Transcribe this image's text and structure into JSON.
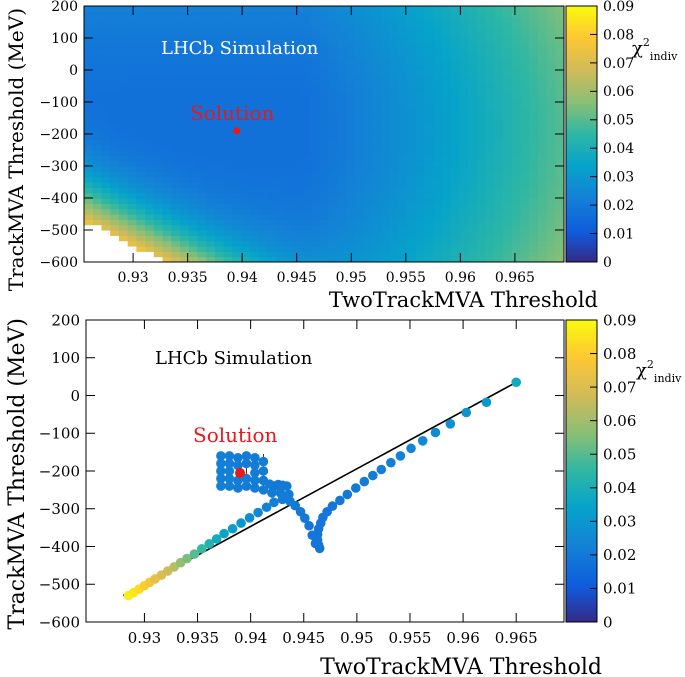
{
  "chart_data": [
    {
      "type": "heatmap",
      "title": "",
      "label": "LHCb Simulation",
      "xlabel": "TwoTrackMVA Threshold",
      "ylabel": "TrackMVA Threshold (MeV)",
      "xlim": [
        0.9255,
        0.9695
      ],
      "ylim": [
        -600,
        200
      ],
      "x_ticks": [
        0.93,
        0.935,
        0.94,
        0.945,
        0.95,
        0.955,
        0.96,
        0.965
      ],
      "x_tick_labels": [
        "0.93",
        "0.935",
        "0.94",
        "0.945",
        "0.95",
        "0.955",
        "0.96",
        "0.965"
      ],
      "y_ticks": [
        -600,
        -500,
        -400,
        -300,
        -200,
        -100,
        0,
        100,
        200
      ],
      "y_tick_labels": [
        "−600",
        "−500",
        "−400",
        "−300",
        "−200",
        "−100",
        "0",
        "100",
        "200"
      ],
      "colorbar": {
        "label_main": "χ",
        "label_sup": "2",
        "label_sub": "indiv",
        "range": [
          0,
          0.09
        ],
        "ticks": [
          0,
          0.01,
          0.02,
          0.03,
          0.04,
          0.05,
          0.06,
          0.07,
          0.08,
          0.09
        ],
        "tick_labels": [
          "0",
          "0.01",
          "0.02",
          "0.03",
          "0.04",
          "0.05",
          "0.06",
          "0.07",
          "0.08",
          "0.09"
        ]
      },
      "annotation": {
        "text": "Solution",
        "x": 0.9395,
        "y": -190,
        "color": "#e8191a"
      },
      "surface": {
        "description": "chi2_indiv over grid, minimum valley around TwoTrack~0.945 and TrackMVA~-250..0",
        "grid_x_step": 0.0008,
        "grid_y_step": 16.7,
        "min_value": 0.017,
        "max_value": 0.09,
        "empty_region": "lower-left corner (x<0.933, y<-470)"
      }
    },
    {
      "type": "scatter",
      "title": "",
      "label": "LHCb Simulation",
      "xlabel": "TwoTrackMVA Threshold",
      "ylabel": "TrackMVA Threshold (MeV)",
      "xlim": [
        0.9245,
        0.9695
      ],
      "ylim": [
        -600,
        200
      ],
      "x_ticks": [
        0.93,
        0.935,
        0.94,
        0.945,
        0.95,
        0.955,
        0.96,
        0.965
      ],
      "x_tick_labels": [
        "0.93",
        "0.935",
        "0.94",
        "0.945",
        "0.95",
        "0.955",
        "0.96",
        "0.965"
      ],
      "y_ticks": [
        -600,
        -500,
        -400,
        -300,
        -200,
        -100,
        0,
        100,
        200
      ],
      "y_tick_labels": [
        "−600",
        "−500",
        "−400",
        "−300",
        "−200",
        "−100",
        "0",
        "100",
        "200"
      ],
      "colorbar": {
        "label_main": "χ",
        "label_sup": "2",
        "label_sub": "indiv",
        "range": [
          0,
          0.09
        ],
        "ticks": [
          0,
          0.01,
          0.02,
          0.03,
          0.04,
          0.05,
          0.06,
          0.07,
          0.08,
          0.09
        ],
        "tick_labels": [
          "0",
          "0.01",
          "0.02",
          "0.03",
          "0.04",
          "0.05",
          "0.06",
          "0.07",
          "0.08",
          "0.09"
        ]
      },
      "annotation": {
        "text": "Solution",
        "x": 0.939,
        "y": -205,
        "color": "#e8191a"
      },
      "line": {
        "x": [
          0.928,
          0.965
        ],
        "y": [
          -530,
          35
        ]
      },
      "points": {
        "upper_line": [
          [
            0.965,
            35,
            0.037
          ],
          [
            0.9622,
            -18,
            0.03
          ],
          [
            0.9603,
            -45,
            0.029
          ],
          [
            0.9588,
            -75,
            0.027
          ],
          [
            0.9574,
            -98,
            0.026
          ],
          [
            0.9562,
            -120,
            0.025
          ],
          [
            0.9551,
            -140,
            0.024
          ],
          [
            0.9541,
            -160,
            0.023
          ],
          [
            0.9532,
            -178,
            0.022
          ],
          [
            0.9523,
            -196,
            0.022
          ],
          [
            0.9515,
            -212,
            0.021
          ],
          [
            0.9507,
            -228,
            0.021
          ],
          [
            0.9499,
            -245,
            0.02
          ],
          [
            0.9491,
            -262,
            0.02
          ],
          [
            0.9484,
            -278,
            0.02
          ],
          [
            0.9477,
            -293,
            0.019
          ],
          [
            0.9472,
            -308,
            0.019
          ],
          [
            0.9468,
            -323,
            0.019
          ],
          [
            0.9466,
            -338,
            0.019
          ],
          [
            0.9464,
            -353,
            0.019
          ],
          [
            0.9463,
            -368,
            0.019
          ],
          [
            0.9463,
            -383,
            0.019
          ],
          [
            0.9464,
            -396,
            0.019
          ],
          [
            0.9465,
            -405,
            0.019
          ]
        ],
        "lower_line": [
          [
            0.9285,
            -530,
            0.087
          ],
          [
            0.929,
            -522,
            0.086
          ],
          [
            0.9295,
            -513,
            0.083
          ],
          [
            0.93,
            -504,
            0.08
          ],
          [
            0.9305,
            -495,
            0.077
          ],
          [
            0.931,
            -486,
            0.073
          ],
          [
            0.9316,
            -476,
            0.07
          ],
          [
            0.9322,
            -465,
            0.067
          ],
          [
            0.9328,
            -454,
            0.063
          ],
          [
            0.9334,
            -443,
            0.058
          ],
          [
            0.934,
            -432,
            0.054
          ],
          [
            0.9347,
            -420,
            0.05
          ],
          [
            0.9354,
            -406,
            0.046
          ],
          [
            0.9361,
            -393,
            0.042
          ],
          [
            0.9368,
            -380,
            0.038
          ],
          [
            0.9375,
            -366,
            0.035
          ],
          [
            0.9383,
            -353,
            0.032
          ],
          [
            0.9391,
            -338,
            0.03
          ],
          [
            0.9399,
            -324,
            0.027
          ],
          [
            0.9407,
            -310,
            0.025
          ],
          [
            0.9415,
            -296,
            0.023
          ],
          [
            0.9422,
            -283,
            0.022
          ],
          [
            0.943,
            -275,
            0.021
          ],
          [
            0.9437,
            -280,
            0.021
          ],
          [
            0.9442,
            -292,
            0.02
          ],
          [
            0.9447,
            -308,
            0.02
          ],
          [
            0.9451,
            -325,
            0.02
          ],
          [
            0.9455,
            -345,
            0.019
          ],
          [
            0.9458,
            -370,
            0.019
          ],
          [
            0.9461,
            -392,
            0.019
          ]
        ],
        "cluster": [
          [
            0.9372,
            -160,
            0.022
          ],
          [
            0.9372,
            -180,
            0.022
          ],
          [
            0.9372,
            -200,
            0.022
          ],
          [
            0.9372,
            -220,
            0.022
          ],
          [
            0.9372,
            -240,
            0.022
          ],
          [
            0.938,
            -160,
            0.022
          ],
          [
            0.938,
            -180,
            0.022
          ],
          [
            0.938,
            -200,
            0.022
          ],
          [
            0.938,
            -220,
            0.022
          ],
          [
            0.938,
            -240,
            0.022
          ],
          [
            0.9388,
            -165,
            0.021
          ],
          [
            0.9388,
            -185,
            0.021
          ],
          [
            0.9388,
            -225,
            0.021
          ],
          [
            0.9388,
            -245,
            0.021
          ],
          [
            0.9396,
            -160,
            0.021
          ],
          [
            0.9396,
            -180,
            0.021
          ],
          [
            0.9396,
            -220,
            0.021
          ],
          [
            0.9396,
            -240,
            0.021
          ],
          [
            0.9404,
            -165,
            0.021
          ],
          [
            0.9404,
            -185,
            0.021
          ],
          [
            0.9404,
            -205,
            0.021
          ],
          [
            0.9404,
            -225,
            0.021
          ],
          [
            0.9404,
            -245,
            0.021
          ],
          [
            0.9412,
            -175,
            0.021
          ],
          [
            0.9412,
            -200,
            0.021
          ],
          [
            0.9412,
            -225,
            0.021
          ],
          [
            0.9412,
            -250,
            0.021
          ],
          [
            0.9418,
            -235,
            0.021
          ],
          [
            0.9422,
            -240,
            0.02
          ],
          [
            0.9426,
            -236,
            0.02
          ],
          [
            0.943,
            -238,
            0.02
          ],
          [
            0.9434,
            -240,
            0.02
          ],
          [
            0.942,
            -258,
            0.021
          ],
          [
            0.9428,
            -258,
            0.021
          ],
          [
            0.9436,
            -262,
            0.021
          ]
        ],
        "solution": [
          0.939,
          -205
        ]
      }
    }
  ]
}
